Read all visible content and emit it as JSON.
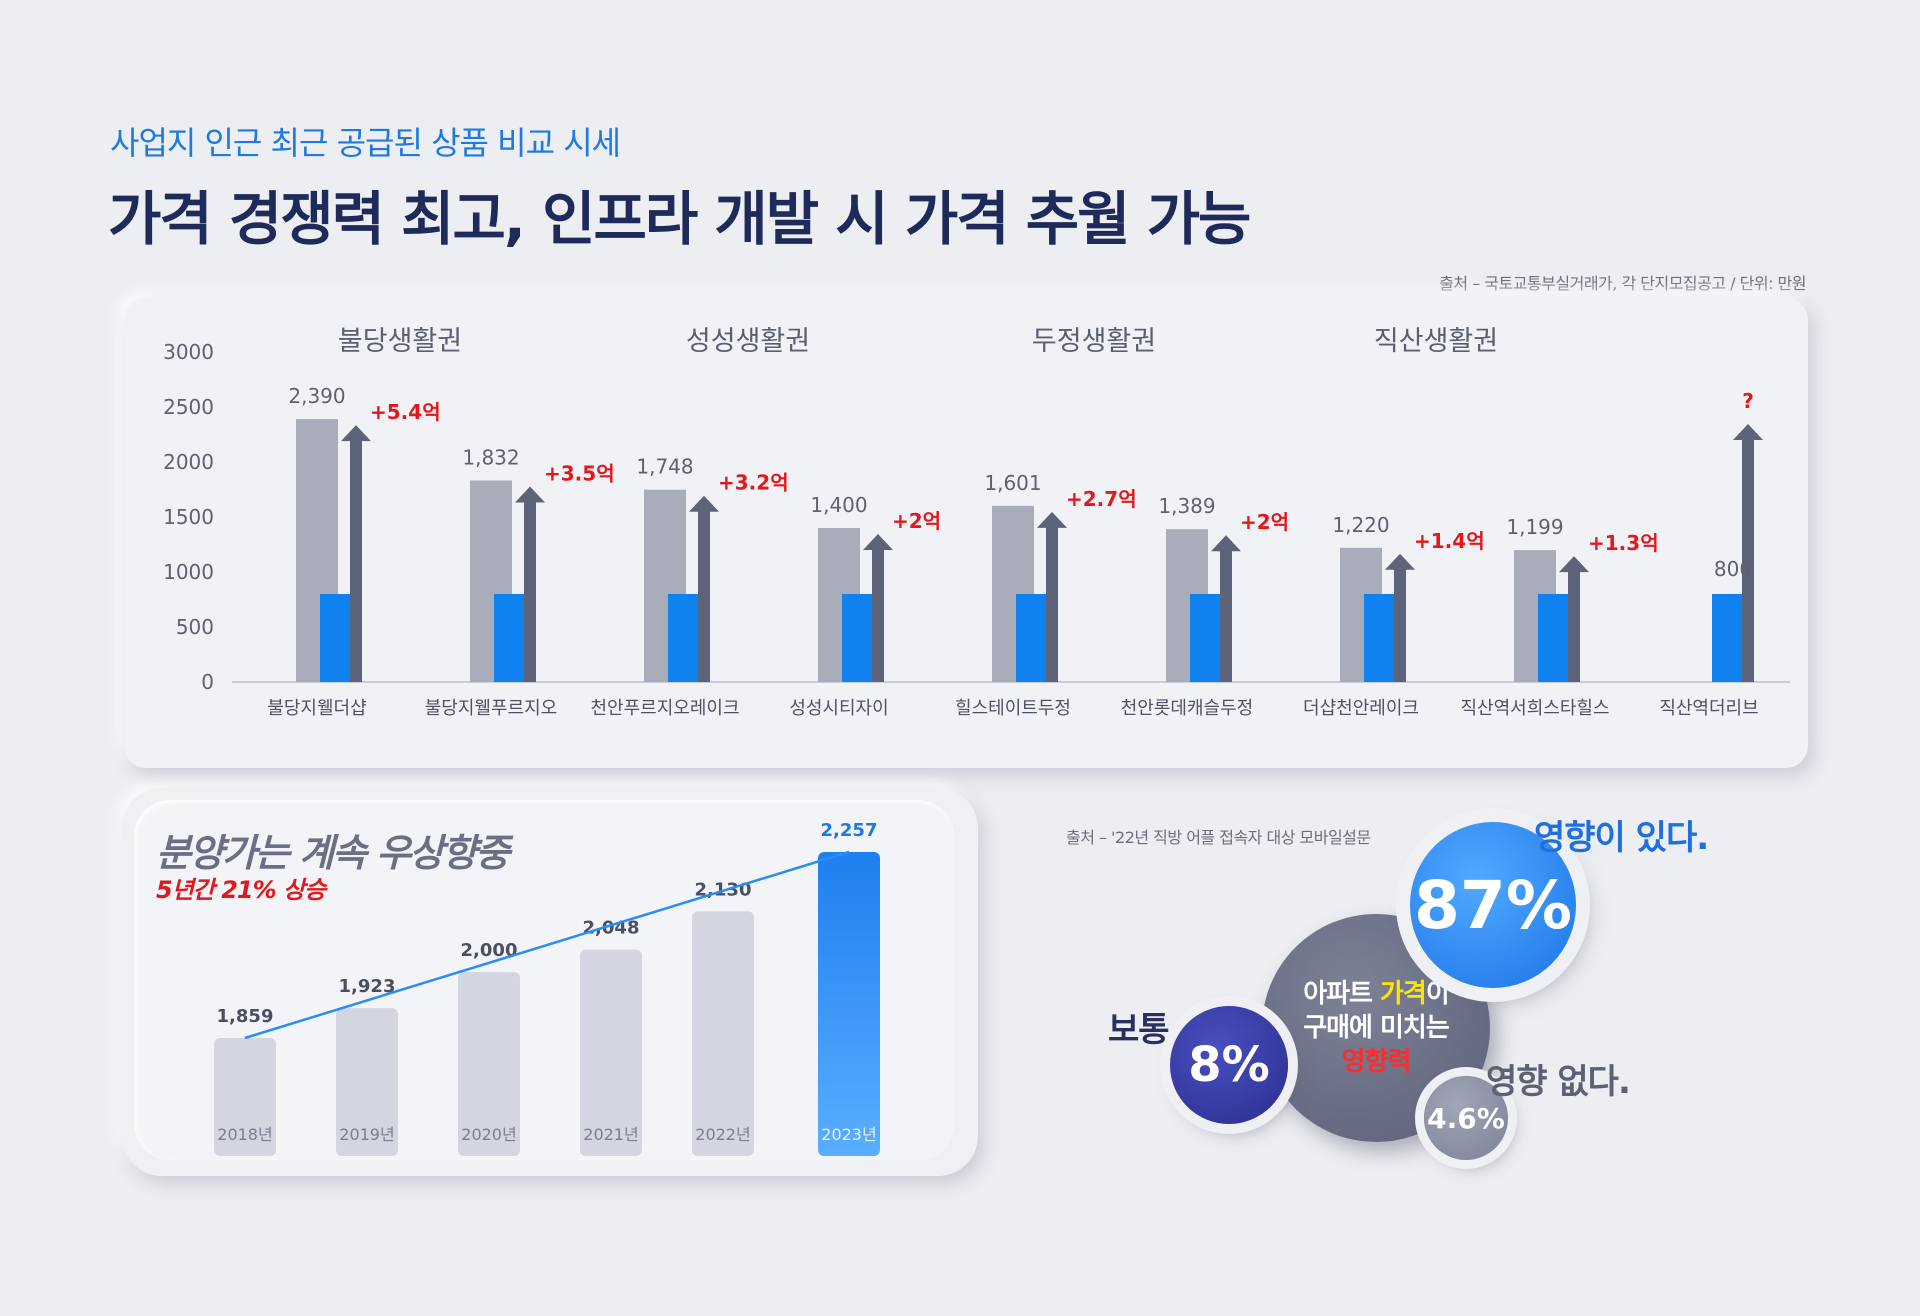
{
  "header": {
    "subtitle": "사업지 인근 최근 공급된 상품 비교 시세",
    "title": "가격 경쟁력 최고, 인프라 개발 시 가격 추월 가능",
    "source": "출처 – 국토교통부실거래가, 각 단지모집공고 / 단위: 만원"
  },
  "chart_data": [
    {
      "type": "bar",
      "groups": [
        "불당생활권",
        "성성생활권",
        "두정생활권",
        "직산생활권"
      ],
      "categories": [
        "불당지웰더샵",
        "불당지웰푸르지오",
        "천안푸르지오레이크",
        "성성시티자이",
        "힐스테이트두정",
        "천안롯데캐슬두정",
        "더샵천안레이크",
        "직산역서희스타힐스",
        "직산역더리브"
      ],
      "series": [
        {
          "values": [
            2390,
            1832,
            1748,
            1400,
            1601,
            1389,
            1220,
            1199,
            null
          ]
        },
        {
          "values": [
            800,
            800,
            800,
            800,
            800,
            800,
            800,
            800,
            800
          ]
        }
      ],
      "value_labels": [
        "2,390",
        "1,832",
        "1,748",
        "1,400",
        "1,601",
        "1,389",
        "1,220",
        "1,199",
        "800"
      ],
      "diff_labels": [
        "+5.4억",
        "+3.5억",
        "+3.2억",
        "+2억",
        "+2.7억",
        "+2억",
        "+1.4억",
        "+1.3억",
        "?"
      ],
      "yticks": [
        "3000",
        "2500",
        "2000",
        "1500",
        "1000",
        "500",
        "0"
      ],
      "ylim": [
        0,
        3000
      ],
      "colors": {
        "gray": "#a9adba",
        "blue": "#0f82f0",
        "arrow": "#5d6378",
        "label_red": "#e3171c"
      }
    },
    {
      "type": "bar",
      "title": "분양가는 계속 우상향중",
      "subtitle": "5년간 21% 상승",
      "categories": [
        "2018년",
        "2019년",
        "2020년",
        "2021년",
        "2022년",
        "2023년"
      ],
      "values": [
        1859,
        1923,
        2000,
        2048,
        2130,
        2257
      ],
      "value_labels": [
        "1,859",
        "1,923",
        "2,000",
        "2,048",
        "2,130",
        "2,257"
      ],
      "colors": {
        "bar": "#d3d6e0",
        "highlight": "#2a8cf5",
        "line": "#2a8cf5"
      }
    },
    {
      "type": "pie",
      "source": "출처 – '22년 직방 어플 접속자 대상 모바일설문",
      "center_text": {
        "line1_a": "아파트 ",
        "line1_b": "가격",
        "line1_c": "이",
        "line2": "구매에 미치는",
        "line3": "영향력"
      },
      "slices": [
        {
          "label": "영향이 있다.",
          "value_label": "87%",
          "value": 87
        },
        {
          "label": "보통",
          "value_label": "8%",
          "value": 8
        },
        {
          "label": "영향 없다.",
          "value_label": "4.6%",
          "value": 4.6
        }
      ]
    }
  ]
}
